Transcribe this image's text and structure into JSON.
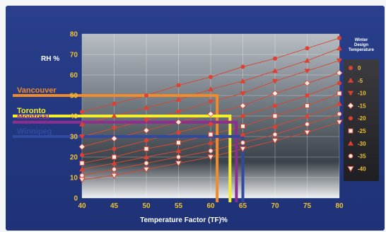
{
  "chart_data": {
    "type": "line",
    "title": "",
    "ylabel": "RH %",
    "xlabel": "Temperature Factor (TF)%",
    "xlim": [
      40,
      80
    ],
    "ylim": [
      0,
      80
    ],
    "x_ticks": [
      40,
      45,
      50,
      55,
      60,
      65,
      70,
      75,
      80
    ],
    "y_ticks": [
      0,
      10,
      20,
      30,
      40,
      50,
      60,
      70,
      80
    ],
    "grid": true,
    "legend_title": "Winter Design Temperature",
    "legend_position": "right",
    "x": [
      40,
      45,
      50,
      55,
      60,
      65,
      70,
      75,
      80
    ],
    "series": [
      {
        "name": "0",
        "marker": "circle",
        "values": [
          42,
          46,
          50,
          55,
          59,
          64,
          68,
          73,
          78
        ]
      },
      {
        "name": "-5",
        "marker": "triangle",
        "values": [
          36,
          40,
          44,
          48,
          53,
          57,
          62,
          67,
          73
        ]
      },
      {
        "name": "-10",
        "marker": "triangle-down",
        "values": [
          30,
          34,
          38,
          42,
          47,
          51,
          57,
          62,
          67
        ]
      },
      {
        "name": "-15",
        "marker": "diamond",
        "values": [
          25,
          29,
          33,
          37,
          41,
          45,
          51,
          56,
          61
        ]
      },
      {
        "name": "-20",
        "marker": "circle",
        "values": [
          21,
          24,
          28,
          32,
          36,
          40,
          45,
          50,
          56
        ]
      },
      {
        "name": "-25",
        "marker": "square-open",
        "values": [
          17,
          20,
          24,
          27,
          31,
          35,
          40,
          45,
          51
        ]
      },
      {
        "name": "-30",
        "marker": "triangle",
        "values": [
          14,
          17,
          20,
          23,
          27,
          31,
          35,
          40,
          46
        ]
      },
      {
        "name": "-35",
        "marker": "circle-open",
        "values": [
          11,
          14,
          17,
          20,
          23,
          27,
          31,
          36,
          41
        ]
      },
      {
        "name": "-40",
        "marker": "triangle-down-open",
        "values": [
          9,
          11,
          14,
          17,
          20,
          24,
          28,
          32,
          37
        ]
      }
    ],
    "cities": [
      {
        "name": "Vancouver",
        "rh": 50,
        "tf": 61,
        "color": "#ef8b2a"
      },
      {
        "name": "Toronto",
        "rh": 40,
        "tf": 63,
        "color": "#f3ee2e"
      },
      {
        "name": "Montreal",
        "rh": 37,
        "tf": 64,
        "color": "#8e2e8f"
      },
      {
        "name": "Winnipeg",
        "rh": 30,
        "tf": 65,
        "color": "#2f4aa0"
      }
    ],
    "colors": {
      "series_line": "#d24a35",
      "marker_fill": "#e0402f",
      "marker_open": "#f4f0e8",
      "legend_bg": "#2f2f33",
      "frame_bg": "#23377f"
    }
  }
}
